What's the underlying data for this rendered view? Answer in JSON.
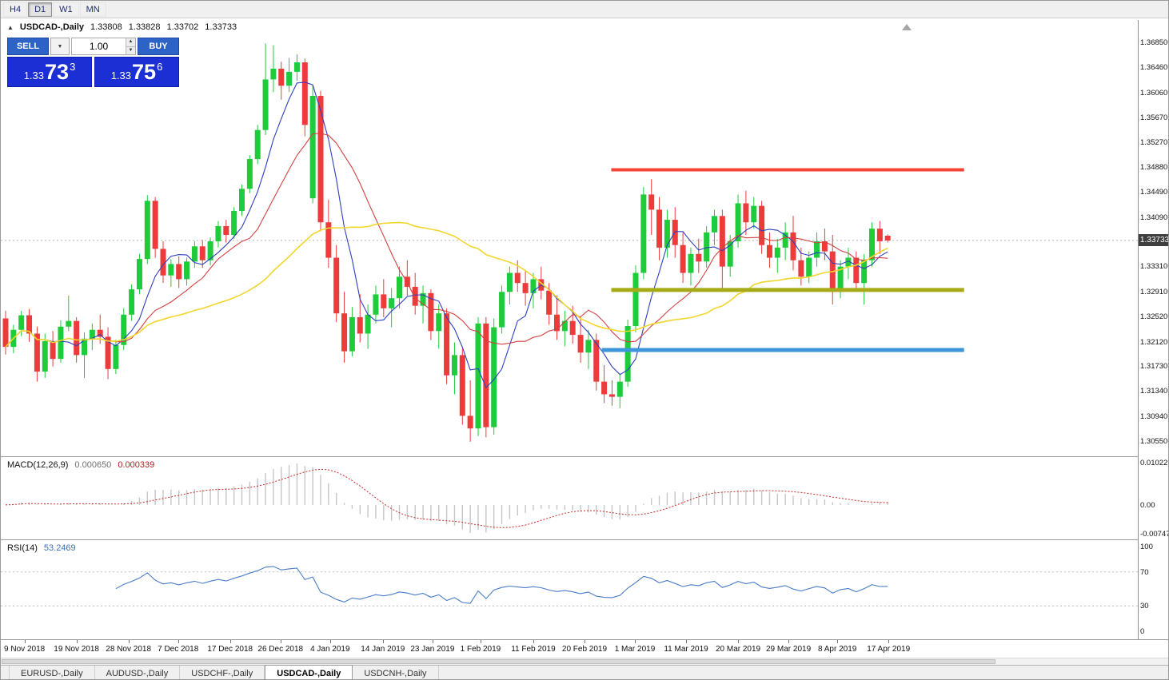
{
  "toolbar": {
    "timeframes": [
      {
        "label": "H4",
        "active": false
      },
      {
        "label": "D1",
        "active": true
      },
      {
        "label": "W1",
        "active": false
      },
      {
        "label": "MN",
        "active": false
      }
    ]
  },
  "icons": {
    "panel_collapse": "▲",
    "dropdown_arrow": "▼",
    "spinner_up": "▲",
    "spinner_down": "▼"
  },
  "chart_header": {
    "symbol": "USDCAD-,Daily",
    "open": "1.33808",
    "high": "1.33828",
    "low": "1.33702",
    "close": "1.33733"
  },
  "trade_panel": {
    "sell_label": "SELL",
    "buy_label": "BUY",
    "lot_value": "1.00",
    "sell_price": {
      "prefix": "1.33",
      "big": "73",
      "sup": "3"
    },
    "buy_price": {
      "prefix": "1.33",
      "big": "75",
      "sup": "6"
    }
  },
  "chart_data": {
    "type": "candlestick",
    "symbol": "USDCAD-",
    "timeframe": "Daily",
    "current_price": 1.33733,
    "ohlc": [
      [
        1.325,
        1.3262,
        1.3193,
        1.3205
      ],
      [
        1.3205,
        1.324,
        1.3195,
        1.3232
      ],
      [
        1.3232,
        1.3262,
        1.3222,
        1.3255
      ],
      [
        1.3255,
        1.3265,
        1.3213,
        1.3226
      ],
      [
        1.3226,
        1.3237,
        1.315,
        1.3166
      ],
      [
        1.3166,
        1.3226,
        1.3156,
        1.3214
      ],
      [
        1.3214,
        1.323,
        1.3174,
        1.3186
      ],
      [
        1.3186,
        1.3247,
        1.318,
        1.3237
      ],
      [
        1.3237,
        1.3286,
        1.323,
        1.3246
      ],
      [
        1.3246,
        1.3252,
        1.318,
        1.3192
      ],
      [
        1.3192,
        1.3228,
        1.3156,
        1.3218
      ],
      [
        1.3218,
        1.3242,
        1.32,
        1.3232
      ],
      [
        1.3232,
        1.3256,
        1.321,
        1.3221
      ],
      [
        1.3221,
        1.3236,
        1.3154,
        1.317
      ],
      [
        1.317,
        1.3216,
        1.3162,
        1.3208
      ],
      [
        1.3208,
        1.3266,
        1.32,
        1.3256
      ],
      [
        1.3256,
        1.3304,
        1.3246,
        1.3296
      ],
      [
        1.3296,
        1.3352,
        1.3288,
        1.3344
      ],
      [
        1.3344,
        1.3445,
        1.3336,
        1.3436
      ],
      [
        1.3436,
        1.3442,
        1.3346,
        1.336
      ],
      [
        1.336,
        1.3372,
        1.3306,
        1.3318
      ],
      [
        1.3318,
        1.3344,
        1.33,
        1.3336
      ],
      [
        1.3336,
        1.3348,
        1.3298,
        1.3312
      ],
      [
        1.3312,
        1.3346,
        1.3302,
        1.334
      ],
      [
        1.334,
        1.3372,
        1.333,
        1.3364
      ],
      [
        1.3364,
        1.3374,
        1.333,
        1.3342
      ],
      [
        1.3342,
        1.3378,
        1.3334,
        1.3372
      ],
      [
        1.3372,
        1.3404,
        1.3362,
        1.3396
      ],
      [
        1.3396,
        1.3406,
        1.337,
        1.3382
      ],
      [
        1.3382,
        1.3426,
        1.3376,
        1.342
      ],
      [
        1.342,
        1.3462,
        1.3412,
        1.3455
      ],
      [
        1.3455,
        1.3508,
        1.3448,
        1.3502
      ],
      [
        1.3502,
        1.3556,
        1.3494,
        1.3548
      ],
      [
        1.3548,
        1.3685,
        1.354,
        1.3628
      ],
      [
        1.3628,
        1.3682,
        1.3608,
        1.3645
      ],
      [
        1.3645,
        1.3656,
        1.3596,
        1.3618
      ],
      [
        1.3618,
        1.3662,
        1.3608,
        1.364
      ],
      [
        1.364,
        1.3668,
        1.3626,
        1.3655
      ],
      [
        1.3655,
        1.3661,
        1.3538,
        1.3556
      ],
      [
        1.344,
        1.3618,
        1.3432,
        1.3602
      ],
      [
        1.3602,
        1.361,
        1.3388,
        1.3402
      ],
      [
        1.3402,
        1.3438,
        1.333,
        1.3346
      ],
      [
        1.3346,
        1.3366,
        1.3244,
        1.3258
      ],
      [
        1.3258,
        1.3292,
        1.318,
        1.3198
      ],
      [
        1.3198,
        1.3268,
        1.319,
        1.3252
      ],
      [
        1.3252,
        1.3288,
        1.3212,
        1.3226
      ],
      [
        1.3226,
        1.3272,
        1.3202,
        1.3256
      ],
      [
        1.3256,
        1.3302,
        1.3242,
        1.3288
      ],
      [
        1.3288,
        1.3312,
        1.3252,
        1.3266
      ],
      [
        1.3266,
        1.3298,
        1.3236,
        1.3282
      ],
      [
        1.3282,
        1.3332,
        1.3266,
        1.3316
      ],
      [
        1.3316,
        1.3342,
        1.3286,
        1.33
      ],
      [
        1.33,
        1.3322,
        1.3256,
        1.327
      ],
      [
        1.327,
        1.3302,
        1.3242,
        1.329
      ],
      [
        1.329,
        1.3296,
        1.3216,
        1.323
      ],
      [
        1.323,
        1.3272,
        1.3202,
        1.3258
      ],
      [
        1.3258,
        1.3266,
        1.3146,
        1.316
      ],
      [
        1.316,
        1.3212,
        1.313,
        1.3192
      ],
      [
        1.3192,
        1.3202,
        1.3082,
        1.3096
      ],
      [
        1.3096,
        1.3152,
        1.3055,
        1.3076
      ],
      [
        1.3076,
        1.3252,
        1.3064,
        1.3242
      ],
      [
        1.3242,
        1.3252,
        1.3062,
        1.3078
      ],
      [
        1.3078,
        1.325,
        1.3066,
        1.3236
      ],
      [
        1.3236,
        1.3302,
        1.3226,
        1.3292
      ],
      [
        1.3292,
        1.3332,
        1.3272,
        1.3322
      ],
      [
        1.3322,
        1.3342,
        1.3292,
        1.3306
      ],
      [
        1.3306,
        1.3326,
        1.327,
        1.329
      ],
      [
        1.329,
        1.3322,
        1.3266,
        1.3312
      ],
      [
        1.3312,
        1.3332,
        1.328,
        1.3294
      ],
      [
        1.3294,
        1.3306,
        1.324,
        1.3256
      ],
      [
        1.3256,
        1.3286,
        1.3216,
        1.323
      ],
      [
        1.323,
        1.3262,
        1.3206,
        1.3246
      ],
      [
        1.3246,
        1.327,
        1.321,
        1.3224
      ],
      [
        1.3224,
        1.3252,
        1.318,
        1.3196
      ],
      [
        1.3196,
        1.3232,
        1.317,
        1.3216
      ],
      [
        1.3216,
        1.3226,
        1.3136,
        1.315
      ],
      [
        1.315,
        1.3176,
        1.3116,
        1.313
      ],
      [
        1.313,
        1.3152,
        1.3112,
        1.3126
      ],
      [
        1.3126,
        1.3162,
        1.3108,
        1.315
      ],
      [
        1.315,
        1.3248,
        1.3142,
        1.3238
      ],
      [
        1.3238,
        1.3334,
        1.3228,
        1.3322
      ],
      [
        1.3322,
        1.3458,
        1.3312,
        1.3446
      ],
      [
        1.3446,
        1.347,
        1.3382,
        1.3422
      ],
      [
        1.3422,
        1.3442,
        1.3342,
        1.3362
      ],
      [
        1.3362,
        1.3422,
        1.3346,
        1.3406
      ],
      [
        1.3406,
        1.3426,
        1.3346,
        1.3366
      ],
      [
        1.3366,
        1.3386,
        1.3306,
        1.3322
      ],
      [
        1.3322,
        1.3362,
        1.3302,
        1.3352
      ],
      [
        1.3352,
        1.3376,
        1.3322,
        1.334
      ],
      [
        1.334,
        1.3396,
        1.333,
        1.3386
      ],
      [
        1.3386,
        1.3422,
        1.3366,
        1.3412
      ],
      [
        1.3412,
        1.3422,
        1.3292,
        1.3332
      ],
      [
        1.3332,
        1.3382,
        1.3316,
        1.3372
      ],
      [
        1.3372,
        1.3446,
        1.3362,
        1.3432
      ],
      [
        1.3432,
        1.3452,
        1.3382,
        1.3402
      ],
      [
        1.3402,
        1.3442,
        1.3392,
        1.3428
      ],
      [
        1.3428,
        1.3436,
        1.3352,
        1.3366
      ],
      [
        1.3366,
        1.3386,
        1.333,
        1.3346
      ],
      [
        1.3346,
        1.3376,
        1.3322,
        1.3362
      ],
      [
        1.3362,
        1.3402,
        1.3342,
        1.3386
      ],
      [
        1.3386,
        1.3412,
        1.3326,
        1.3342
      ],
      [
        1.3342,
        1.3362,
        1.3302,
        1.3316
      ],
      [
        1.3316,
        1.3356,
        1.3306,
        1.3346
      ],
      [
        1.3346,
        1.3386,
        1.3332,
        1.3372
      ],
      [
        1.3372,
        1.3392,
        1.3342,
        1.3356
      ],
      [
        1.3356,
        1.3382,
        1.3272,
        1.3292
      ],
      [
        1.3292,
        1.3342,
        1.3282,
        1.3332
      ],
      [
        1.3332,
        1.3362,
        1.3312,
        1.3346
      ],
      [
        1.3346,
        1.3356,
        1.3292,
        1.3306
      ],
      [
        1.3306,
        1.3352,
        1.3272,
        1.3342
      ],
      [
        1.3342,
        1.3402,
        1.3332,
        1.3392
      ],
      [
        1.3392,
        1.3404,
        1.3352,
        1.3372
      ],
      [
        1.33808,
        1.33828,
        1.33702,
        1.33733
      ]
    ],
    "moving_averages": [
      {
        "period": 6,
        "color_key": "ma_fast",
        "width": 1.1
      },
      {
        "period": 13,
        "color_key": "ma_mid",
        "width": 1.1
      },
      {
        "period": 34,
        "color_key": "ma_slow",
        "width": 1.6
      }
    ],
    "horizontal_rays": [
      {
        "name": "resistance-ray-red",
        "price": 1.3485,
        "from_index": 76.9,
        "to_index": 121.7,
        "color_key": "ray_red",
        "thickness": 4
      },
      {
        "name": "support-ray-olive",
        "price": 1.3295,
        "from_index": 76.9,
        "to_index": 121.7,
        "color_key": "ray_olive",
        "thickness": 5
      },
      {
        "name": "support-ray-blue",
        "price": 1.32,
        "from_index": 75.7,
        "to_index": 121.7,
        "color_key": "ray_blue",
        "thickness": 5
      }
    ]
  },
  "indicators": {
    "macd": {
      "label": "MACD(12,26,9)",
      "value_main": "0.000650",
      "value_signal": "0.000339",
      "scale_top": "0.010229",
      "scale_zero": "0.00",
      "scale_bottom": "-0.007477",
      "fast": 12,
      "slow": 26,
      "signal": 9
    },
    "rsi": {
      "label": "RSI(14)",
      "value": "53.2469",
      "period": 14,
      "levels": [
        {
          "text": "100",
          "value": 100
        },
        {
          "text": "70",
          "value": 70
        },
        {
          "text": "30",
          "value": 30
        },
        {
          "text": "0",
          "value": 0
        }
      ]
    }
  },
  "price_scale": {
    "labels": [
      "1.36850",
      "1.36460",
      "1.36060",
      "1.35670",
      "1.35270",
      "1.34880",
      "1.34490",
      "1.34090",
      "1.33310",
      "1.32910",
      "1.32520",
      "1.32120",
      "1.31730",
      "1.31340",
      "1.30940",
      "1.30550"
    ],
    "current": "1.33733",
    "axis_min": 1.3032,
    "axis_max": 1.3722
  },
  "time_axis": [
    {
      "label": "9 Nov 2018",
      "index": 2.4
    },
    {
      "label": "19 Nov 2018",
      "index": 9.0
    },
    {
      "label": "28 Nov 2018",
      "index": 15.6
    },
    {
      "label": "7 Dec 2018",
      "index": 21.9
    },
    {
      "label": "17 Dec 2018",
      "index": 28.5
    },
    {
      "label": "26 Dec 2018",
      "index": 34.9
    },
    {
      "label": "4 Jan 2019",
      "index": 41.2
    },
    {
      "label": "14 Jan 2019",
      "index": 47.9
    },
    {
      "label": "23 Jan 2019",
      "index": 54.2
    },
    {
      "label": "1 Feb 2019",
      "index": 60.3
    },
    {
      "label": "11 Feb 2019",
      "index": 67.0
    },
    {
      "label": "20 Feb 2019",
      "index": 73.5
    },
    {
      "label": "1 Mar 2019",
      "index": 79.9
    },
    {
      "label": "11 Mar 2019",
      "index": 86.4
    },
    {
      "label": "20 Mar 2019",
      "index": 93.0
    },
    {
      "label": "29 Mar 2019",
      "index": 99.4
    },
    {
      "label": "8 Apr 2019",
      "index": 105.6
    },
    {
      "label": "17 Apr 2019",
      "index": 112.1
    }
  ],
  "bottom_tabs": [
    {
      "label": "EURUSD-,Daily",
      "active": false
    },
    {
      "label": "AUDUSD-,Daily",
      "active": false
    },
    {
      "label": "USDCHF-,Daily",
      "active": false
    },
    {
      "label": "USDCAD-,Daily",
      "active": true
    },
    {
      "label": "USDCNH-,Daily",
      "active": false
    }
  ],
  "colors": {
    "bull": "#1ecb3a",
    "bear": "#eb3b3b",
    "ma_fast": "#2e3fbe",
    "ma_mid": "#d54040",
    "ma_slow": "#f2d62c",
    "ray_red": "#f64336",
    "ray_olive": "#a8ab18",
    "ray_blue": "#3d96d9",
    "macd_histogram": "#c6c6c6",
    "macd_signal": "#cc2828",
    "rsi_line": "#4a7cc8",
    "trade_btn": "#2d62c6",
    "trade_price_bg": "#1b2fd4",
    "badge_bg": "#3f3f3f"
  }
}
